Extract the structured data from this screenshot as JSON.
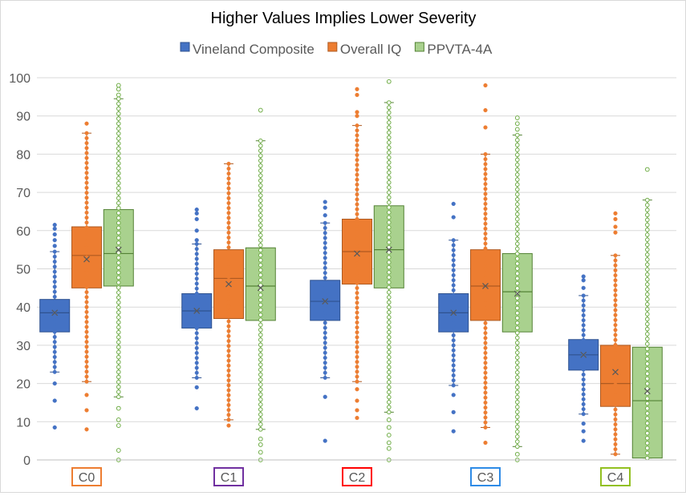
{
  "chart_data": {
    "type": "box",
    "title": "Higher Values  Implies Lower Severity",
    "xlabel": "",
    "ylabel": "",
    "ylim": [
      0,
      100
    ],
    "yticks": [
      0,
      10,
      20,
      30,
      40,
      50,
      60,
      70,
      80,
      90,
      100
    ],
    "grid": true,
    "legend_position": "top",
    "categories": [
      {
        "label": "C0",
        "color": "#ED7D31"
      },
      {
        "label": "C1",
        "color": "#7030A0"
      },
      {
        "label": "C2",
        "color": "#FF0000"
      },
      {
        "label": "C3",
        "color": "#2E8BE6"
      },
      {
        "label": "C4",
        "color": "#92C020"
      }
    ],
    "series": [
      {
        "name": "Vineland Composite",
        "fill": "#4472C4",
        "stroke": "#2F528F",
        "dot": "#4472C4",
        "dot_style": "filled",
        "boxes": [
          {
            "q1": 33.5,
            "median": 38.5,
            "q3": 42,
            "mean": 38.5,
            "whisker_low": 23,
            "whisker_high": 54.5,
            "outliers": [
              8.5,
              15.5,
              20,
              56,
              57.5,
              59,
              60.5,
              61.5
            ]
          },
          {
            "q1": 34.5,
            "median": 39,
            "q3": 43.5,
            "mean": 39,
            "whisker_low": 21.5,
            "whisker_high": 56.5,
            "outliers": [
              13.5,
              19,
              57.5,
              60,
              63,
              64.5,
              65.5
            ]
          },
          {
            "q1": 36.5,
            "median": 41.5,
            "q3": 47,
            "mean": 41.5,
            "whisker_low": 21.5,
            "whisker_high": 62,
            "outliers": [
              5,
              16.5,
              64,
              66,
              67.5
            ]
          },
          {
            "q1": 33.5,
            "median": 38.5,
            "q3": 43.5,
            "mean": 38.5,
            "whisker_low": 19.5,
            "whisker_high": 57.5,
            "outliers": [
              7.5,
              12.5,
              17,
              63.5,
              67
            ]
          },
          {
            "q1": 23.5,
            "median": 27.5,
            "q3": 31.5,
            "mean": 27.5,
            "whisker_low": 12,
            "whisker_high": 43,
            "outliers": [
              5,
              7.5,
              9.5,
              45,
              47,
              48
            ]
          }
        ]
      },
      {
        "name": "Overall IQ",
        "fill": "#ED7D31",
        "stroke": "#AE5A21",
        "dot": "#ED7D31",
        "dot_style": "filled",
        "boxes": [
          {
            "q1": 45,
            "median": 53.5,
            "q3": 61,
            "mean": 52.5,
            "whisker_low": 20.5,
            "whisker_high": 85.5,
            "outliers": [
              8,
              13,
              17,
              88
            ]
          },
          {
            "q1": 37,
            "median": 47.5,
            "q3": 55,
            "mean": 46,
            "whisker_low": 10.5,
            "whisker_high": 77.5,
            "outliers": [
              9
            ]
          },
          {
            "q1": 46,
            "median": 54.5,
            "q3": 63,
            "mean": 54,
            "whisker_low": 20.5,
            "whisker_high": 87.5,
            "outliers": [
              11,
              13,
              15.5,
              18.5,
              90,
              91,
              95.5,
              97
            ]
          },
          {
            "q1": 36.5,
            "median": 45.5,
            "q3": 55,
            "mean": 45.5,
            "whisker_low": 8.5,
            "whisker_high": 80,
            "outliers": [
              4.5,
              87,
              91.5,
              98
            ]
          },
          {
            "q1": 14,
            "median": 20,
            "q3": 30,
            "mean": 23,
            "whisker_low": 1.5,
            "whisker_high": 53.5,
            "outliers": [
              59.5,
              61,
              63,
              64.5
            ]
          }
        ]
      },
      {
        "name": "PPVTA-4A",
        "fill": "#A9D18E",
        "stroke": "#548235",
        "dot": "#70AD47",
        "dot_style": "hollow",
        "boxes": [
          {
            "q1": 45.5,
            "median": 54,
            "q3": 65.5,
            "mean": 55,
            "whisker_low": 16.5,
            "whisker_high": 94.5,
            "outliers": [
              0,
              2.5,
              9,
              10.5,
              13.5,
              95.5,
              97,
              98
            ]
          },
          {
            "q1": 36.5,
            "median": 45.5,
            "q3": 55.5,
            "mean": 45,
            "whisker_low": 8,
            "whisker_high": 83.5,
            "outliers": [
              0,
              2,
              4,
              5.5,
              91.5
            ]
          },
          {
            "q1": 45,
            "median": 55,
            "q3": 66.5,
            "mean": 55,
            "whisker_low": 12.5,
            "whisker_high": 93.5,
            "outliers": [
              0,
              3,
              4.5,
              6.5,
              8.5,
              10.5,
              99
            ]
          },
          {
            "q1": 33.5,
            "median": 44,
            "q3": 54,
            "mean": 43.5,
            "whisker_low": 3.5,
            "whisker_high": 85,
            "outliers": [
              0,
              1.5,
              86.5,
              88,
              89.5
            ]
          },
          {
            "q1": 0.5,
            "median": 15.5,
            "q3": 29.5,
            "mean": 18,
            "whisker_low": 0.5,
            "whisker_high": 68,
            "outliers": [
              76
            ]
          }
        ]
      }
    ]
  }
}
